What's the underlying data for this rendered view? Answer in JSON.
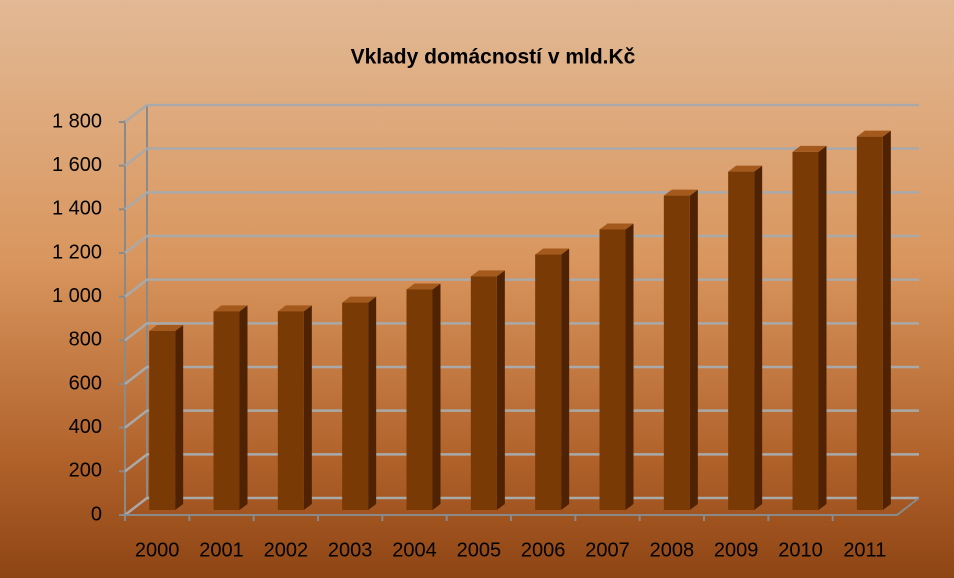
{
  "chart_data": {
    "type": "bar3d",
    "title": "Vklady domácností v mld.Kč",
    "categories": [
      "2000",
      "2001",
      "2002",
      "2003",
      "2004",
      "2005",
      "2006",
      "2007",
      "2008",
      "2009",
      "2010",
      "2011"
    ],
    "values": [
      820,
      910,
      910,
      950,
      1010,
      1070,
      1170,
      1285,
      1440,
      1550,
      1640,
      1710
    ],
    "color": "#7a3a06",
    "ylim": [
      0,
      1800
    ],
    "yticks": [
      0,
      200,
      400,
      600,
      800,
      {
        "value": 1000,
        "label": "1 000"
      },
      {
        "value": 1200,
        "label": "1 200"
      },
      {
        "value": 1400,
        "label": "1 400"
      },
      {
        "value": 1600,
        "label": "1 600"
      },
      {
        "value": 1800,
        "label": "1 800"
      }
    ],
    "grid": true
  }
}
